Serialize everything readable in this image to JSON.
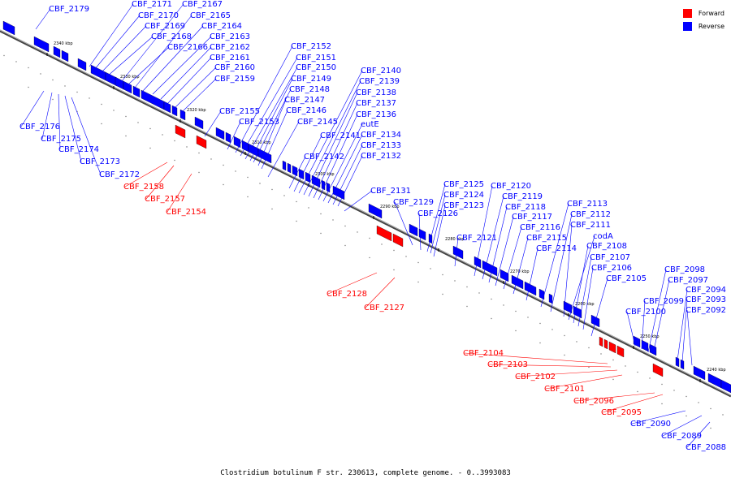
{
  "legend": {
    "forward_label": "Forward",
    "reverse_label": "Reverse",
    "forward_color": "#ff0000",
    "reverse_color": "#0000ff"
  },
  "caption": "Clostridium botulinum F str. 230613, complete genome. - 0..3993083",
  "ticks": [
    "2340 kbp",
    "2330 kbp",
    "2320 kbp",
    "2310 kbp",
    "2300 kbp",
    "2290 kbp",
    "2280 kbp",
    "2270 kbp",
    "2260 kbp",
    "2250 kbp",
    "2240 kbp"
  ],
  "genes": [
    {
      "name": "CBF_2179",
      "strand": "reverse"
    },
    {
      "name": "CBF_2176",
      "strand": "reverse"
    },
    {
      "name": "CBF_2175",
      "strand": "reverse"
    },
    {
      "name": "CBF_2174",
      "strand": "reverse"
    },
    {
      "name": "CBF_2173",
      "strand": "reverse"
    },
    {
      "name": "CBF_2172",
      "strand": "reverse"
    },
    {
      "name": "CBF_2171",
      "strand": "reverse"
    },
    {
      "name": "CBF_2170",
      "strand": "reverse"
    },
    {
      "name": "CBF_2169",
      "strand": "reverse"
    },
    {
      "name": "CBF_2168",
      "strand": "reverse"
    },
    {
      "name": "CBF_2167",
      "strand": "reverse"
    },
    {
      "name": "CBF_2166",
      "strand": "reverse"
    },
    {
      "name": "CBF_2165",
      "strand": "reverse"
    },
    {
      "name": "CBF_2164",
      "strand": "reverse"
    },
    {
      "name": "CBF_2163",
      "strand": "reverse"
    },
    {
      "name": "CBF_2162",
      "strand": "reverse"
    },
    {
      "name": "CBF_2161",
      "strand": "reverse"
    },
    {
      "name": "CBF_2160",
      "strand": "reverse"
    },
    {
      "name": "CBF_2159",
      "strand": "reverse"
    },
    {
      "name": "CBF_2158",
      "strand": "forward"
    },
    {
      "name": "CBF_2157",
      "strand": "forward"
    },
    {
      "name": "CBF_2155",
      "strand": "reverse"
    },
    {
      "name": "CBF_2154",
      "strand": "forward"
    },
    {
      "name": "CBF_2153",
      "strand": "reverse"
    },
    {
      "name": "CBF_2152",
      "strand": "reverse"
    },
    {
      "name": "CBF_2151",
      "strand": "reverse"
    },
    {
      "name": "CBF_2150",
      "strand": "reverse"
    },
    {
      "name": "CBF_2149",
      "strand": "reverse"
    },
    {
      "name": "CBF_2148",
      "strand": "reverse"
    },
    {
      "name": "CBF_2147",
      "strand": "reverse"
    },
    {
      "name": "CBF_2146",
      "strand": "reverse"
    },
    {
      "name": "CBF_2145",
      "strand": "reverse"
    },
    {
      "name": "CBF_2142",
      "strand": "reverse"
    },
    {
      "name": "CBF_2141",
      "strand": "reverse"
    },
    {
      "name": "CBF_2140",
      "strand": "reverse"
    },
    {
      "name": "CBF_2139",
      "strand": "reverse"
    },
    {
      "name": "CBF_2138",
      "strand": "reverse"
    },
    {
      "name": "CBF_2137",
      "strand": "reverse"
    },
    {
      "name": "CBF_2136",
      "strand": "reverse"
    },
    {
      "name": "eutE",
      "strand": "reverse"
    },
    {
      "name": "CBF_2134",
      "strand": "reverse"
    },
    {
      "name": "CBF_2133",
      "strand": "reverse"
    },
    {
      "name": "CBF_2132",
      "strand": "reverse"
    },
    {
      "name": "CBF_2131",
      "strand": "reverse"
    },
    {
      "name": "CBF_2129",
      "strand": "reverse"
    },
    {
      "name": "CBF_2128",
      "strand": "forward"
    },
    {
      "name": "CBF_2127",
      "strand": "forward"
    },
    {
      "name": "CBF_2126",
      "strand": "reverse"
    },
    {
      "name": "CBF_2125",
      "strand": "reverse"
    },
    {
      "name": "CBF_2124",
      "strand": "reverse"
    },
    {
      "name": "CBF_2123",
      "strand": "reverse"
    },
    {
      "name": "CBF_2121",
      "strand": "reverse"
    },
    {
      "name": "CBF_2120",
      "strand": "reverse"
    },
    {
      "name": "CBF_2119",
      "strand": "reverse"
    },
    {
      "name": "CBF_2118",
      "strand": "reverse"
    },
    {
      "name": "CBF_2117",
      "strand": "reverse"
    },
    {
      "name": "CBF_2116",
      "strand": "reverse"
    },
    {
      "name": "CBF_2115",
      "strand": "reverse"
    },
    {
      "name": "CBF_2114",
      "strand": "reverse"
    },
    {
      "name": "CBF_2113",
      "strand": "reverse"
    },
    {
      "name": "CBF_2112",
      "strand": "reverse"
    },
    {
      "name": "CBF_2111",
      "strand": "reverse"
    },
    {
      "name": "codA",
      "strand": "reverse"
    },
    {
      "name": "CBF_2108",
      "strand": "reverse"
    },
    {
      "name": "CBF_2107",
      "strand": "reverse"
    },
    {
      "name": "CBF_2106",
      "strand": "reverse"
    },
    {
      "name": "CBF_2105",
      "strand": "reverse"
    },
    {
      "name": "CBF_2104",
      "strand": "forward"
    },
    {
      "name": "CBF_2103",
      "strand": "forward"
    },
    {
      "name": "CBF_2102",
      "strand": "forward"
    },
    {
      "name": "CBF_2101",
      "strand": "forward"
    },
    {
      "name": "CBF_2100",
      "strand": "reverse"
    },
    {
      "name": "CBF_2099",
      "strand": "reverse"
    },
    {
      "name": "CBF_2098",
      "strand": "reverse"
    },
    {
      "name": "CBF_2097",
      "strand": "reverse"
    },
    {
      "name": "CBF_2096",
      "strand": "forward"
    },
    {
      "name": "CBF_2095",
      "strand": "forward"
    },
    {
      "name": "CBF_2094",
      "strand": "reverse"
    },
    {
      "name": "CBF_2093",
      "strand": "reverse"
    },
    {
      "name": "CBF_2092",
      "strand": "reverse"
    },
    {
      "name": "CBF_2090",
      "strand": "reverse"
    },
    {
      "name": "CBF_2089",
      "strand": "reverse"
    },
    {
      "name": "CBF_2088",
      "strand": "reverse"
    }
  ]
}
